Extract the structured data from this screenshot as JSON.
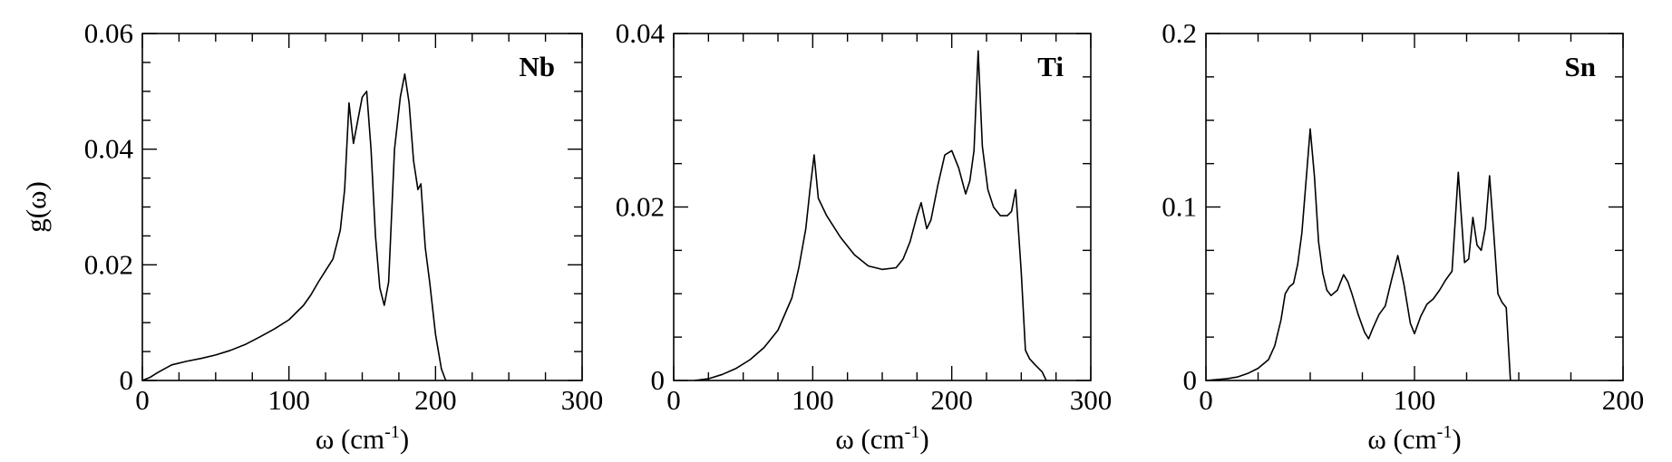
{
  "chart_data": [
    {
      "type": "line",
      "panel_label": "Nb",
      "xlabel": "ω (cm",
      "xlabel_sup": "-1",
      "xlabel_end": ")",
      "ylabel": "g(ω)",
      "xlim": [
        0,
        300
      ],
      "ylim": [
        0,
        0.06
      ],
      "xticks": [
        0,
        100,
        200,
        300
      ],
      "xtick_labels": [
        "0",
        "100",
        "200",
        "300"
      ],
      "yticks": [
        0,
        0.02,
        0.04,
        0.06
      ],
      "ytick_labels": [
        "0",
        "0.02",
        "0.04",
        "0.06"
      ],
      "series": [
        {
          "x": [
            0,
            5,
            10,
            15,
            20,
            30,
            40,
            50,
            60,
            70,
            80,
            90,
            100,
            110,
            115,
            120,
            125,
            130,
            135,
            138,
            141,
            144,
            147,
            150,
            153,
            156,
            159,
            162,
            165,
            168,
            172,
            176,
            179,
            182,
            185,
            188,
            190,
            193,
            196,
            200,
            204,
            207
          ],
          "y": [
            0,
            0.0005,
            0.0013,
            0.002,
            0.0027,
            0.0033,
            0.0038,
            0.0044,
            0.0052,
            0.0062,
            0.0075,
            0.0089,
            0.0105,
            0.013,
            0.0148,
            0.017,
            0.019,
            0.021,
            0.026,
            0.033,
            0.048,
            0.041,
            0.045,
            0.049,
            0.05,
            0.04,
            0.025,
            0.016,
            0.013,
            0.017,
            0.04,
            0.049,
            0.053,
            0.048,
            0.038,
            0.033,
            0.034,
            0.023,
            0.017,
            0.008,
            0.002,
            0
          ]
        }
      ]
    },
    {
      "type": "line",
      "panel_label": "Ti",
      "xlabel": "ω (cm",
      "xlabel_sup": "-1",
      "xlabel_end": ")",
      "ylabel": "",
      "xlim": [
        0,
        300
      ],
      "ylim": [
        0,
        0.04
      ],
      "xticks": [
        0,
        100,
        200,
        300
      ],
      "xtick_labels": [
        "0",
        "100",
        "200",
        "300"
      ],
      "yticks": [
        0,
        0.02,
        0.04
      ],
      "ytick_labels": [
        "0",
        "0.02",
        "0.04"
      ],
      "series": [
        {
          "x": [
            15,
            25,
            35,
            45,
            55,
            65,
            75,
            85,
            90,
            95,
            98,
            101,
            104,
            110,
            120,
            130,
            140,
            150,
            160,
            165,
            170,
            175,
            178,
            182,
            185,
            190,
            195,
            200,
            205,
            210,
            213,
            216,
            219,
            222,
            226,
            230,
            235,
            240,
            243,
            246,
            250,
            253,
            256,
            260,
            265,
            268
          ],
          "y": [
            0,
            0.0002,
            0.0007,
            0.0014,
            0.0024,
            0.0038,
            0.0058,
            0.0095,
            0.013,
            0.0175,
            0.022,
            0.026,
            0.021,
            0.019,
            0.0165,
            0.0145,
            0.0132,
            0.0128,
            0.013,
            0.014,
            0.016,
            0.019,
            0.0205,
            0.0175,
            0.0185,
            0.0225,
            0.026,
            0.0265,
            0.0245,
            0.0215,
            0.023,
            0.0265,
            0.038,
            0.027,
            0.022,
            0.02,
            0.019,
            0.019,
            0.0195,
            0.022,
            0.0125,
            0.0035,
            0.0025,
            0.0018,
            0.001,
            0
          ]
        }
      ]
    },
    {
      "type": "line",
      "panel_label": "Sn",
      "xlabel": "ω (cm",
      "xlabel_sup": "-1",
      "xlabel_end": ")",
      "ylabel": "",
      "xlim": [
        0,
        200
      ],
      "ylim": [
        0,
        0.2
      ],
      "xticks": [
        0,
        100,
        200
      ],
      "xtick_labels": [
        "0",
        "100",
        "200"
      ],
      "yticks": [
        0,
        0.1,
        0.2
      ],
      "ytick_labels": [
        "0",
        "0.1",
        "0.2"
      ],
      "series": [
        {
          "x": [
            0,
            5,
            10,
            15,
            20,
            25,
            30,
            33,
            36,
            38,
            40,
            42,
            44,
            46,
            48,
            50,
            52,
            54,
            56,
            58,
            60,
            63,
            66,
            68,
            70,
            73,
            76,
            78,
            80,
            83,
            86,
            89,
            92,
            95,
            98,
            100,
            103,
            106,
            109,
            112,
            115,
            118,
            121,
            124,
            126,
            128,
            130,
            132,
            134,
            136,
            138,
            140,
            142,
            144,
            146
          ],
          "y": [
            0,
            0.0005,
            0.001,
            0.002,
            0.004,
            0.007,
            0.012,
            0.02,
            0.035,
            0.05,
            0.054,
            0.056,
            0.067,
            0.085,
            0.115,
            0.145,
            0.118,
            0.08,
            0.062,
            0.052,
            0.049,
            0.052,
            0.061,
            0.057,
            0.05,
            0.038,
            0.028,
            0.024,
            0.03,
            0.038,
            0.043,
            0.058,
            0.072,
            0.055,
            0.033,
            0.027,
            0.037,
            0.044,
            0.047,
            0.052,
            0.058,
            0.063,
            0.12,
            0.068,
            0.07,
            0.094,
            0.078,
            0.075,
            0.088,
            0.118,
            0.085,
            0.05,
            0.045,
            0.042,
            0
          ]
        }
      ]
    }
  ]
}
